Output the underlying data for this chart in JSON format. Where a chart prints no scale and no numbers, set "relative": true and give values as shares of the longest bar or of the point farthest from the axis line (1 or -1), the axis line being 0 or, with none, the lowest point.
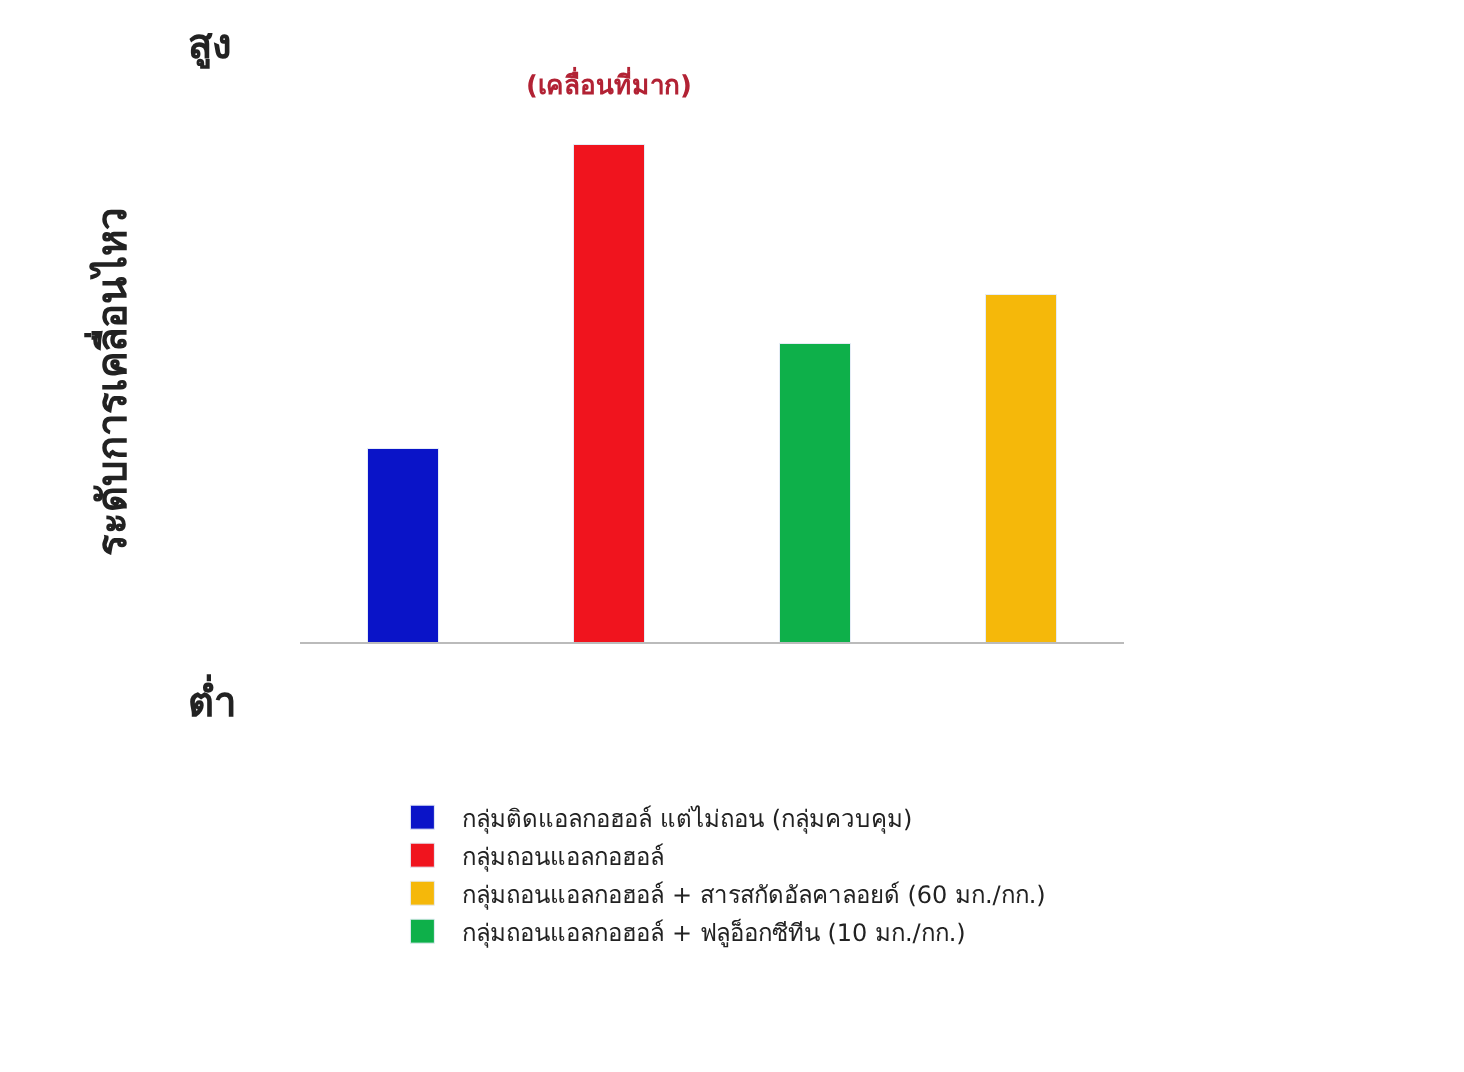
{
  "chart_data": {
    "type": "bar",
    "relative": true,
    "ylabel": "ระดับการเคลื่อนไหว",
    "categories": [
      null,
      null,
      null,
      null
    ],
    "series": [
      {
        "name": "กลุ่มติดแอลกอฮอล์ แต่ไม่ถอน (กลุ่มควบคุม)",
        "color": "#0a14c8",
        "values": [
          0.39,
          null,
          null,
          null
        ]
      },
      {
        "name": "กลุ่มถอนแอลกอฮอล์",
        "color": "#f0141e",
        "values": [
          null,
          1,
          null,
          null
        ]
      },
      {
        "name": "กลุ่มถอนแอลกอฮอล์ + สารสกัดอัลคาลอยด์ (60 มก./กก.)",
        "color": "#f5b80a",
        "values": [
          null,
          null,
          null,
          0.7
        ]
      },
      {
        "name": "กลุ่มถอนแอลกอฮอล์ + ฟลูอ็อกซีทีน (10 มก./กก.)",
        "color": "#0eb04a",
        "values": [
          null,
          null,
          0.6,
          null
        ]
      }
    ],
    "annotations": [
      "สูง",
      "ต่ำ",
      "(เคลื่อนที่มาก)"
    ],
    "stacked": true,
    "legend": "bottom"
  }
}
